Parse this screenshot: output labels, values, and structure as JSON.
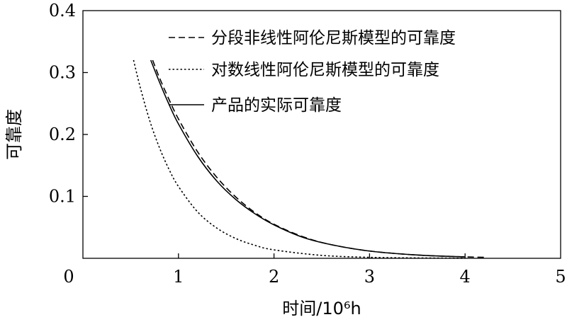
{
  "chart_data": {
    "type": "line",
    "title": "",
    "xlabel": "时间/10⁶h",
    "ylabel": "可靠度",
    "xlim": [
      0,
      5
    ],
    "ylim": [
      0,
      0.4
    ],
    "x_ticks": [
      "0",
      "1",
      "2",
      "3",
      "4",
      "5"
    ],
    "y_ticks": [
      "0.1",
      "0.2",
      "0.3",
      "0.4"
    ],
    "grid": false,
    "legend_position": "top-right",
    "series": [
      {
        "name": "分段非线性阿伦尼斯模型的可靠度",
        "style": "dashed",
        "color": "#000000",
        "x": [
          0.73,
          0.8,
          0.9,
          1.0,
          1.2,
          1.4,
          1.6,
          1.8,
          2.0,
          2.3,
          2.6,
          3.0,
          3.5,
          4.0,
          4.2
        ],
        "y": [
          0.32,
          0.292,
          0.257,
          0.225,
          0.172,
          0.131,
          0.099,
          0.074,
          0.055,
          0.035,
          0.022,
          0.0118,
          0.0053,
          0.0023,
          0.0016
        ]
      },
      {
        "name": "对数线性阿伦尼斯模型的可靠度",
        "style": "dotted",
        "color": "#000000",
        "x": [
          0.53,
          0.6,
          0.7,
          0.8,
          0.9,
          1.0,
          1.2,
          1.4,
          1.6,
          1.8,
          2.0,
          2.5,
          3.0,
          3.5,
          4.0
        ],
        "y": [
          0.32,
          0.276,
          0.222,
          0.179,
          0.144,
          0.116,
          0.075,
          0.049,
          0.032,
          0.021,
          0.0136,
          0.0047,
          0.0016,
          0.0006,
          0.0002
        ]
      },
      {
        "name": "产品的实际可靠度",
        "style": "solid",
        "color": "#000000",
        "x": [
          0.71,
          0.8,
          0.9,
          1.0,
          1.2,
          1.4,
          1.6,
          1.8,
          2.0,
          2.3,
          2.6,
          3.0,
          3.5,
          4.0
        ],
        "y": [
          0.32,
          0.285,
          0.249,
          0.217,
          0.165,
          0.125,
          0.095,
          0.072,
          0.054,
          0.034,
          0.022,
          0.0117,
          0.0053,
          0.0023
        ]
      }
    ]
  }
}
